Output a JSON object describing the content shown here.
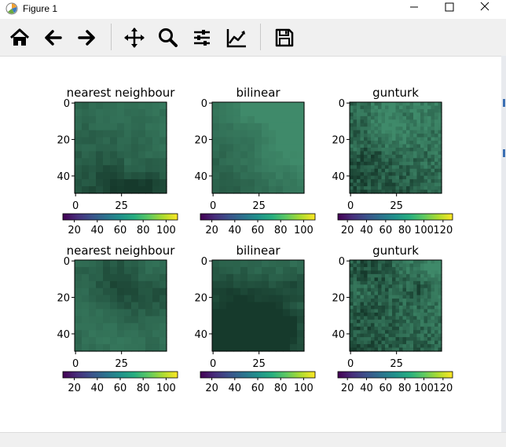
{
  "window": {
    "title": "Figure 1"
  },
  "toolbar": {
    "buttons": [
      {
        "icon": "home-icon",
        "name": "home-button"
      },
      {
        "icon": "arrow-left-icon",
        "name": "back-button"
      },
      {
        "icon": "arrow-right-icon",
        "name": "forward-button"
      },
      {
        "icon": "move-icon",
        "name": "pan-button"
      },
      {
        "icon": "search-icon",
        "name": "zoom-button"
      },
      {
        "icon": "sliders-icon",
        "name": "configure-subplots-button"
      },
      {
        "icon": "line-chart-icon",
        "name": "edit-axes-button"
      },
      {
        "icon": "save-icon",
        "name": "save-button"
      }
    ]
  },
  "figure": {
    "panels": [
      {
        "title": "nearest neighbour",
        "y_ticks": [
          "0",
          "20",
          "40"
        ],
        "x_ticks": [
          "0",
          "25"
        ],
        "colorbar_ticks": [
          "20",
          "40",
          "60",
          "80",
          "100"
        ],
        "colorbar_range": [
          10,
          110
        ],
        "texture": "smooth",
        "seed": 3
      },
      {
        "title": "bilinear",
        "y_ticks": [
          "0",
          "20",
          "40"
        ],
        "x_ticks": [
          "0",
          "25"
        ],
        "colorbar_ticks": [
          "20",
          "40",
          "60",
          "80",
          "100"
        ],
        "colorbar_range": [
          10,
          110
        ],
        "texture": "smooth",
        "seed": 5
      },
      {
        "title": "gunturk",
        "y_ticks": [
          "0",
          "20",
          "40"
        ],
        "x_ticks": [
          "0",
          "25"
        ],
        "colorbar_ticks": [
          "20",
          "40",
          "60",
          "80",
          "100",
          "120"
        ],
        "colorbar_range": [
          10,
          130
        ],
        "texture": "detailed",
        "seed": 7
      },
      {
        "title": "nearest neighbour",
        "y_ticks": [
          "0",
          "20",
          "40"
        ],
        "x_ticks": [
          "0",
          "25"
        ],
        "colorbar_ticks": [
          "20",
          "40",
          "60",
          "80",
          "100"
        ],
        "colorbar_range": [
          10,
          110
        ],
        "texture": "smooth",
        "seed": 11
      },
      {
        "title": "bilinear",
        "y_ticks": [
          "0",
          "20",
          "40"
        ],
        "x_ticks": [
          "0",
          "25"
        ],
        "colorbar_ticks": [
          "20",
          "40",
          "60",
          "80",
          "100"
        ],
        "colorbar_range": [
          10,
          110
        ],
        "texture": "smooth",
        "seed": 13
      },
      {
        "title": "gunturk",
        "y_ticks": [
          "0",
          "20",
          "40"
        ],
        "x_ticks": [
          "0",
          "25"
        ],
        "colorbar_ticks": [
          "20",
          "40",
          "60",
          "80",
          "100",
          "120"
        ],
        "colorbar_range": [
          10,
          130
        ],
        "texture": "detailed",
        "seed": 17
      }
    ],
    "image_size": 50,
    "colors": {
      "base": "#2f6a52",
      "dark": "#163a2c",
      "light": "#3f8a6a"
    }
  }
}
